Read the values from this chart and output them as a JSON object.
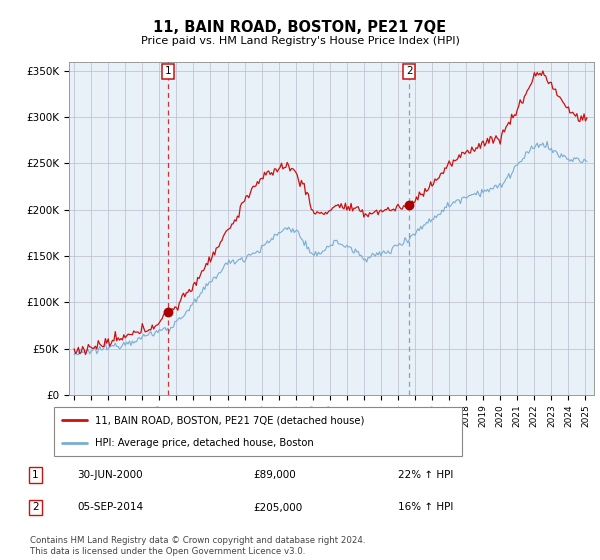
{
  "title": "11, BAIN ROAD, BOSTON, PE21 7QE",
  "subtitle": "Price paid vs. HM Land Registry's House Price Index (HPI)",
  "legend_line1": "11, BAIN ROAD, BOSTON, PE21 7QE (detached house)",
  "legend_line2": "HPI: Average price, detached house, Boston",
  "sale1_date": "30-JUN-2000",
  "sale1_price": "£89,000",
  "sale1_hpi": "22% ↑ HPI",
  "sale2_date": "05-SEP-2014",
  "sale2_price": "£205,000",
  "sale2_hpi": "16% ↑ HPI",
  "footer": "Contains HM Land Registry data © Crown copyright and database right 2024.\nThis data is licensed under the Open Government Licence v3.0.",
  "ylim": [
    0,
    360000
  ],
  "yticks": [
    0,
    50000,
    100000,
    150000,
    200000,
    250000,
    300000,
    350000
  ],
  "ytick_labels": [
    "£0",
    "£50K",
    "£100K",
    "£150K",
    "£200K",
    "£250K",
    "£300K",
    "£350K"
  ],
  "hpi_color": "#7aadd4",
  "price_color": "#cc1111",
  "marker_color": "#aa0000",
  "bg_chart": "#e8f0f8",
  "background_color": "#ffffff",
  "grid_color": "#bbbbcc",
  "sale1_year": 2000.5,
  "sale2_year": 2014.67,
  "sale1_price_val": 89000,
  "sale2_price_val": 205000,
  "xlim_left": 1994.7,
  "xlim_right": 2025.5
}
